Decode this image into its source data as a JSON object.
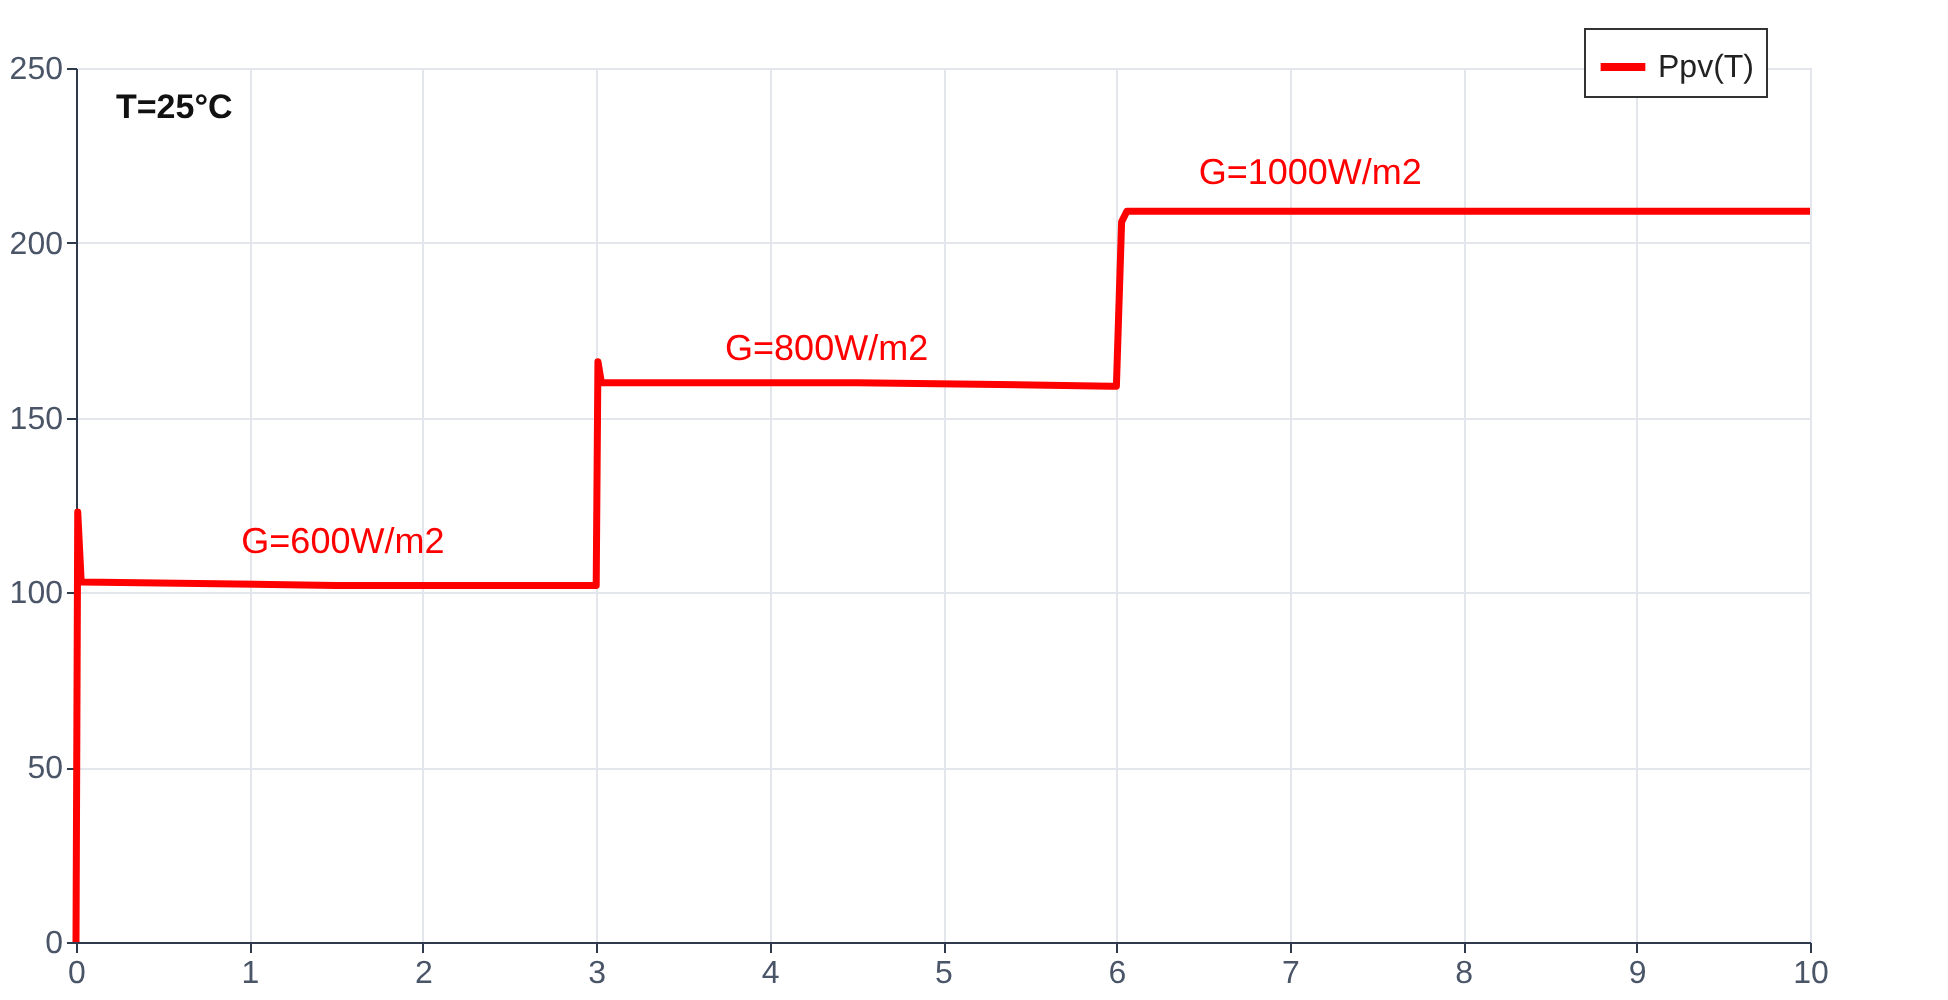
{
  "chart_data": {
    "type": "line",
    "xlim": [
      0,
      10
    ],
    "ylim": [
      0,
      250
    ],
    "xticks": [
      0,
      1,
      2,
      3,
      4,
      5,
      6,
      7,
      8,
      9,
      10
    ],
    "yticks": [
      0,
      50,
      100,
      150,
      200,
      250
    ],
    "grid": true,
    "legend": "top right",
    "marker": "none",
    "line_style": "solid",
    "series": [
      {
        "name": "Ppv(T)",
        "color": "#ff0000",
        "x": [
          0,
          0.01,
          0.03,
          1.5,
          2.98,
          3.0,
          3.01,
          3.03,
          4.5,
          5.97,
          6.0,
          6.03,
          6.06,
          8,
          10
        ],
        "values": [
          0,
          123,
          103,
          102,
          102,
          102,
          166,
          160,
          160,
          159,
          159,
          206,
          209,
          209,
          209
        ]
      }
    ],
    "annotations": [
      "T=25°C",
      "G=600W/m2",
      "G=800W/m2",
      "G=1000W/m2"
    ]
  }
}
